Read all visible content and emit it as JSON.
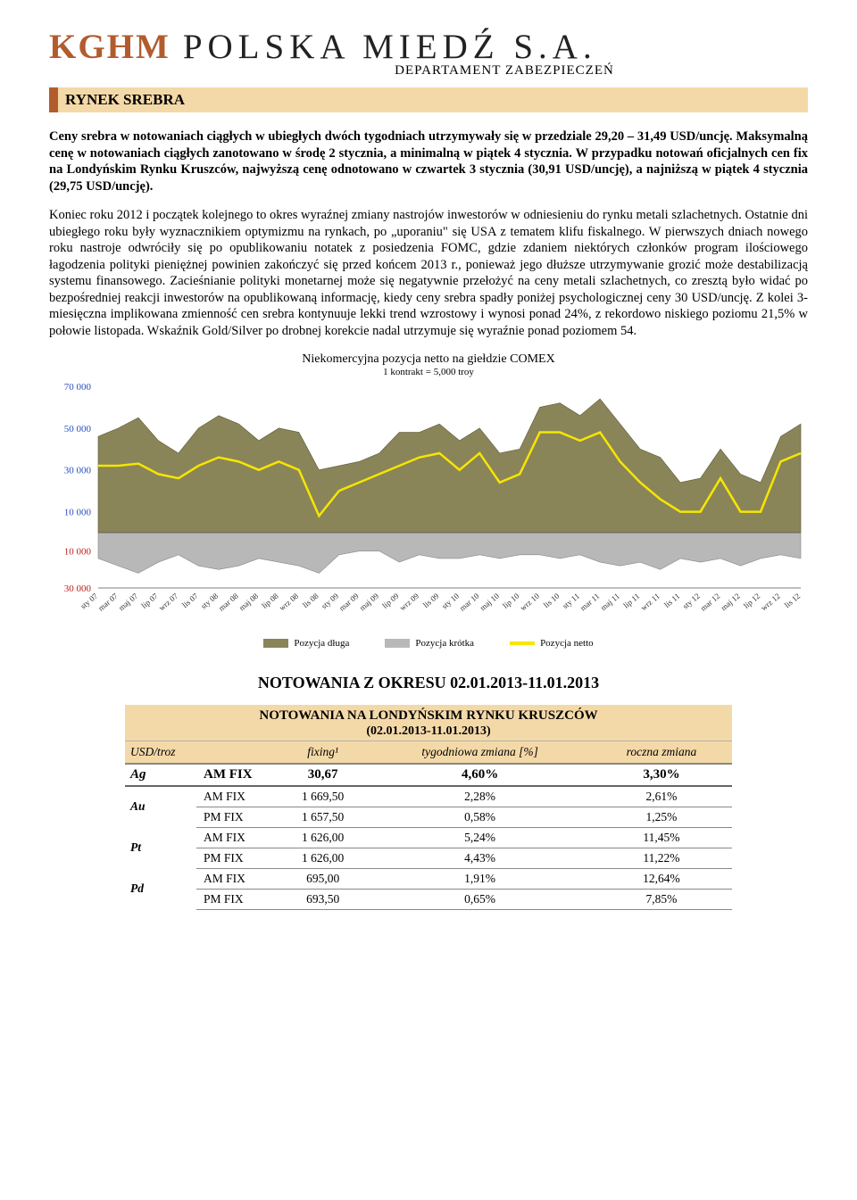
{
  "header": {
    "logo_kghm": "KGHM",
    "logo_rest": "POLSKA MIEDŹ S.A.",
    "department": "DEPARTAMENT ZABEZPIECZEŃ"
  },
  "section_title": "RYNEK SREBRA",
  "para1": "Ceny srebra w notowaniach ciągłych w ubiegłych dwóch tygodniach utrzymywały się w przedziale 29,20 – 31,49 USD/uncję. Maksymalną cenę w notowaniach ciągłych zanotowano w środę 2 stycznia, a minimalną w piątek 4 stycznia. W przypadku notowań oficjalnych cen fix na Londyńskim Rynku Kruszców, najwyższą cenę odnotowano w czwartek 3 stycznia (30,91 USD/uncję), a najniższą w piątek 4 stycznia (29,75 USD/uncję).",
  "para2": "Koniec roku 2012 i początek kolejnego to okres wyraźnej zmiany nastrojów inwestorów w odniesieniu do rynku metali szlachetnych. Ostatnie dni ubiegłego roku były wyznacznikiem optymizmu na rynkach, po „uporaniu\" się USA z tematem klifu fiskalnego. W pierwszych dniach nowego roku nastroje odwróciły się po opublikowaniu notatek z posiedzenia  FOMC, gdzie zdaniem niektórych członków program ilościowego łagodzenia polityki pieniężnej powinien zakończyć się przed końcem 2013 r., ponieważ jego dłuższe utrzymywanie grozić może destabilizacją systemu finansowego. Zacieśnianie polityki monetarnej może się negatywnie przełożyć na ceny metali szlachetnych, co zresztą było widać po bezpośredniej reakcji inwestorów na opublikowaną informację, kiedy ceny srebra spadły poniżej psychologicznej ceny 30 USD/uncję. Z kolei 3-miesięczna implikowana zmienność cen srebra kontynuuje lekki trend wzrostowy i wynosi ponad 24%, z rekordowo niskiego poziomu 21,5% w połowie listopada. Wskaźnik Gold/Silver po drobnej korekcie nadal utrzymuje się wyraźnie ponad poziomem 54.",
  "chart": {
    "title": "Niekomercyjna pozycja netto na giełdzie COMEX",
    "subtitle": "1 kontrakt = 5,000 troy",
    "y_upper_labels": [
      "70 000",
      "50 000",
      "30 000",
      "10 000"
    ],
    "y_lower_labels": [
      "10 000",
      "30 000"
    ],
    "x_labels": [
      "sty 07",
      "mar 07",
      "maj 07",
      "lip 07",
      "wrz 07",
      "lis 07",
      "sty 08",
      "mar 08",
      "maj 08",
      "lip 08",
      "wrz 08",
      "lis 08",
      "sty 09",
      "mar 09",
      "maj 09",
      "lip 09",
      "wrz 09",
      "lis 09",
      "sty 10",
      "mar 10",
      "maj 10",
      "lip 10",
      "wrz 10",
      "lis 10",
      "sty 11",
      "mar 11",
      "maj 11",
      "lip 11",
      "wrz 11",
      "lis 11",
      "sty 12",
      "mar 12",
      "maj 12",
      "lip 12",
      "wrz 12",
      "lis 12"
    ],
    "legend": {
      "long": "Pozycja długa",
      "short": "Pozycja krótka",
      "net": "Pozycja netto"
    },
    "colors": {
      "long_fill": "#8a8558",
      "short_fill": "#b8b8b8",
      "net_line": "#f6e600",
      "axis_upper": "#2a4fbf",
      "axis_lower": "#c02020",
      "bg": "#ffffff"
    },
    "upper_max": 70000,
    "lower_max": 30000,
    "series_long": [
      46000,
      50000,
      55000,
      44000,
      38000,
      50000,
      56000,
      52000,
      44000,
      50000,
      48000,
      30000,
      32000,
      34000,
      38000,
      48000,
      48000,
      52000,
      44000,
      50000,
      38000,
      40000,
      60000,
      62000,
      56000,
      64000,
      52000,
      40000,
      36000,
      24000,
      26000,
      40000,
      28000,
      24000,
      46000,
      52000
    ],
    "series_short": [
      14000,
      18000,
      22000,
      16000,
      12000,
      18000,
      20000,
      18000,
      14000,
      16000,
      18000,
      22000,
      12000,
      10000,
      10000,
      16000,
      12000,
      14000,
      14000,
      12000,
      14000,
      12000,
      12000,
      14000,
      12000,
      16000,
      18000,
      16000,
      20000,
      14000,
      16000,
      14000,
      18000,
      14000,
      12000,
      14000
    ],
    "series_net": [
      32000,
      32000,
      33000,
      28000,
      26000,
      32000,
      36000,
      34000,
      30000,
      34000,
      30000,
      8000,
      20000,
      24000,
      28000,
      32000,
      36000,
      38000,
      30000,
      38000,
      24000,
      28000,
      48000,
      48000,
      44000,
      48000,
      34000,
      24000,
      16000,
      10000,
      10000,
      26000,
      10000,
      10000,
      34000,
      38000
    ]
  },
  "quotes_heading": "NOTOWANIA Z OKRESU 02.01.2013-11.01.2013",
  "table": {
    "title": "NOTOWANIA NA LONDYŃSKIM RYNKU KRUSZCÓW",
    "subtitle": "(02.01.2013-11.01.2013)",
    "headers": [
      "USD/troz",
      "",
      "fixing¹",
      "tygodniowa zmiana [%]",
      "roczna zmiana"
    ],
    "rows": [
      {
        "sym": "Ag",
        "fix": "AM FIX",
        "v1": "30,67",
        "v2": "4,60%",
        "v3": "3,30%",
        "hl": true,
        "rowspan": 1
      },
      {
        "sym": "Au",
        "fix": "AM FIX",
        "v1": "1 669,50",
        "v2": "2,28%",
        "v3": "2,61%",
        "rowspan": 2
      },
      {
        "sym": "",
        "fix": "PM FIX",
        "v1": "1 657,50",
        "v2": "0,58%",
        "v3": "1,25%"
      },
      {
        "sym": "Pt",
        "fix": "AM FIX",
        "v1": "1 626,00",
        "v2": "5,24%",
        "v3": "11,45%",
        "rowspan": 2
      },
      {
        "sym": "",
        "fix": "PM FIX",
        "v1": "1 626,00",
        "v2": "4,43%",
        "v3": "11,22%"
      },
      {
        "sym": "Pd",
        "fix": "AM FIX",
        "v1": "695,00",
        "v2": "1,91%",
        "v3": "12,64%",
        "rowspan": 2
      },
      {
        "sym": "",
        "fix": "PM FIX",
        "v1": "693,50",
        "v2": "0,65%",
        "v3": "7,85%"
      }
    ]
  }
}
